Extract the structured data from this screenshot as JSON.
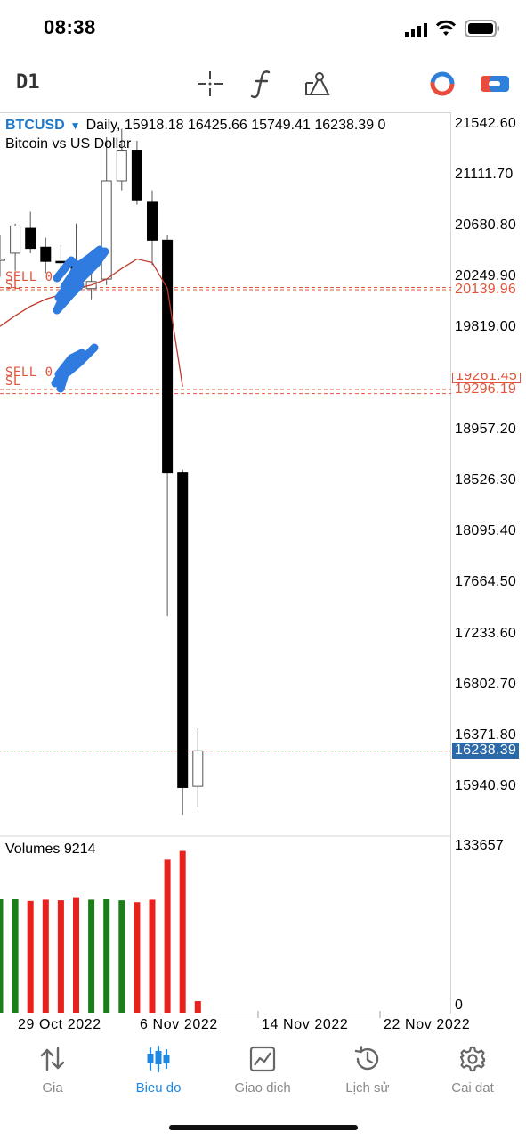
{
  "status_bar": {
    "time": "08:38"
  },
  "toolbar": {
    "timeframe": "D1",
    "tools": [
      "crosshair-icon",
      "function-icon",
      "drawing-objects-icon"
    ],
    "right_icons": [
      "one-click-trading-icon",
      "trade-toggle-icon"
    ]
  },
  "symbol": {
    "name": "BTCUSD",
    "header": "Daily, 15918.18 16425.66 15749.41 16238.39 0",
    "description": "Bitcoin vs US Dollar"
  },
  "price_axis": [
    "21542.60",
    "21111.70",
    "20680.80",
    "20249.90",
    "19819.00",
    "19261.45",
    "18957.20",
    "18526.30",
    "18095.40",
    "17664.50",
    "17233.60",
    "16802.70",
    "16371.80",
    "15940.90"
  ],
  "price_tags": {
    "sell_level_1": "20139.96",
    "sell_level_2": "19261.45",
    "sl_level": "19296.19",
    "current": "16238.39"
  },
  "order_labels": [
    "SELL 0",
    "SL",
    "SELL 0",
    "SL"
  ],
  "volumes": {
    "label": "Volumes 9214",
    "axis_max": "133657",
    "axis_min": "0"
  },
  "date_axis": [
    "29 Oct 2022",
    "6 Nov 2022",
    "14 Nov 2022",
    "22 Nov 2022"
  ],
  "colors": {
    "accent": "#1e88e5",
    "symbol": "#1e78c8",
    "order_line": "#e0553c",
    "volume_up": "#1a7f1a",
    "volume_down": "#e8211c",
    "current_price_tag": "#2a6aa8",
    "moving_average": "#c0392b"
  },
  "chart_data": {
    "type": "candlestick",
    "candles": [
      {
        "open": 20400,
        "high": 20600,
        "low": 20250,
        "close": 20400
      },
      {
        "open": 20450,
        "high": 20700,
        "low": 20300,
        "close": 20680
      },
      {
        "open": 20660,
        "high": 20800,
        "low": 20450,
        "close": 20490
      },
      {
        "open": 20500,
        "high": 20580,
        "low": 20280,
        "close": 20380
      },
      {
        "open": 20380,
        "high": 20520,
        "low": 20260,
        "close": 20370
      },
      {
        "open": 20370,
        "high": 20700,
        "low": 20120,
        "close": 20210
      },
      {
        "open": 20150,
        "high": 20420,
        "low": 20060,
        "close": 20210
      },
      {
        "open": 20230,
        "high": 21430,
        "low": 20180,
        "close": 21060
      },
      {
        "open": 21060,
        "high": 21500,
        "low": 20980,
        "close": 21320
      },
      {
        "open": 21320,
        "high": 21400,
        "low": 20860,
        "close": 20900
      },
      {
        "open": 20880,
        "high": 20980,
        "low": 20350,
        "close": 20560
      },
      {
        "open": 20560,
        "high": 20600,
        "low": 17380,
        "close": 18590
      },
      {
        "open": 18590,
        "high": 18620,
        "low": 15700,
        "close": 15930
      },
      {
        "open": 15940,
        "high": 16430,
        "low": 15770,
        "close": 16240
      }
    ],
    "volumes": [
      91000,
      91000,
      89000,
      90000,
      89500,
      92000,
      90000,
      91000,
      89500,
      88000,
      90000,
      122000,
      129000,
      9214
    ],
    "dates": {
      "29 Oct 2022": 1,
      "6 Nov 2022": 11,
      "14 Nov 2022": 19,
      "22 Nov 2022": 27
    },
    "moving_average": [
      {
        "i": 0,
        "v": 19830
      },
      {
        "i": 1,
        "v": 19920
      },
      {
        "i": 2,
        "v": 20000
      },
      {
        "i": 3,
        "v": 20060
      },
      {
        "i": 4,
        "v": 20100
      },
      {
        "i": 5,
        "v": 20150
      },
      {
        "i": 6,
        "v": 20180
      },
      {
        "i": 7,
        "v": 20230
      },
      {
        "i": 8,
        "v": 20320
      },
      {
        "i": 9,
        "v": 20400
      },
      {
        "i": 10,
        "v": 20370
      },
      {
        "i": 11,
        "v": 20150
      },
      {
        "i": 12,
        "v": 19320
      }
    ],
    "order_lines": [
      20159.0,
      20139.96,
      19261.45,
      19296.19
    ],
    "current_price": 16238.39,
    "ylim": [
      15680,
      21640
    ],
    "volume_ylim": [
      0,
      133657
    ]
  },
  "nav": {
    "items": [
      {
        "label": "Gia",
        "icon": "quotes-arrows-icon"
      },
      {
        "label": "Bieu do",
        "icon": "chart-candles-icon"
      },
      {
        "label": "Giao dich",
        "icon": "trade-chart-icon"
      },
      {
        "label": "Lịch sử",
        "icon": "history-clock-icon"
      },
      {
        "label": "Cai dat",
        "icon": "settings-gear-icon"
      }
    ],
    "active": 1
  }
}
